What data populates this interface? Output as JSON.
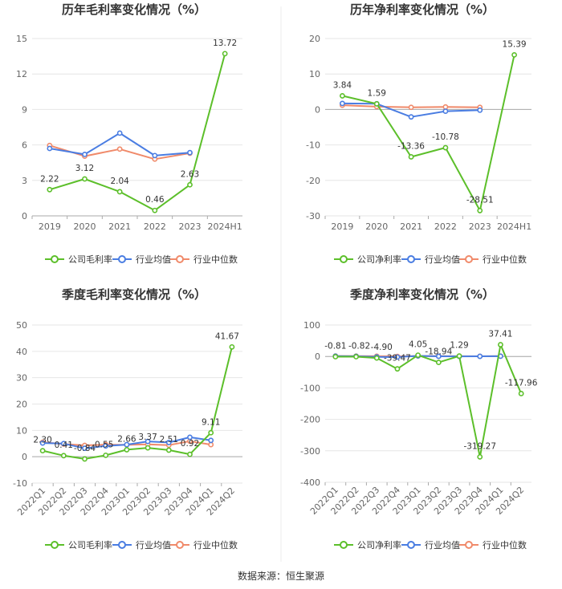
{
  "source_text": "数据来源：恒生聚源",
  "legend_labels": {
    "gross": [
      "公司毛利率",
      "行业均值",
      "行业中位数"
    ],
    "net": [
      "公司净利率",
      "行业均值",
      "行业中位数"
    ]
  },
  "colors": {
    "company": "#5cbf2a",
    "mean": "#4a7de2",
    "median": "#f08a6a",
    "grid": "#e6e6e6",
    "axis": "#aaaaaa"
  },
  "chart_data": [
    {
      "type": "line",
      "title": "历年毛利率变化情况（%）",
      "categories": [
        "2019",
        "2020",
        "2021",
        "2022",
        "2023",
        "2024H1"
      ],
      "ylim": [
        0,
        15
      ],
      "yticks": [
        0,
        3,
        6,
        9,
        12,
        15
      ],
      "series": [
        {
          "name": "公司毛利率",
          "values": [
            2.22,
            3.12,
            2.04,
            0.46,
            2.63,
            13.72
          ],
          "labels": [
            "2.22",
            "3.12",
            "2.04",
            "0.46",
            "2.63",
            "13.72"
          ]
        },
        {
          "name": "行业均值",
          "values": [
            5.7,
            5.2,
            7.0,
            5.1,
            5.35,
            null
          ]
        },
        {
          "name": "行业中位数",
          "values": [
            5.95,
            5.05,
            5.65,
            4.8,
            5.3,
            null
          ]
        }
      ]
    },
    {
      "type": "line",
      "title": "历年净利率变化情况（%）",
      "categories": [
        "2019",
        "2020",
        "2021",
        "2022",
        "2023",
        "2024H1"
      ],
      "ylim": [
        -30,
        20
      ],
      "yticks": [
        -30,
        -20,
        -10,
        0,
        10,
        20
      ],
      "series": [
        {
          "name": "公司净利率",
          "values": [
            3.84,
            1.59,
            -13.36,
            -10.78,
            -28.51,
            15.39
          ],
          "labels": [
            "3.84",
            "1.59",
            "-13.36",
            "-10.78",
            "-28.51",
            "15.39"
          ]
        },
        {
          "name": "行业均值",
          "values": [
            1.7,
            1.6,
            -2.1,
            -0.5,
            -0.2,
            null
          ]
        },
        {
          "name": "行业中位数",
          "values": [
            1.2,
            0.8,
            0.6,
            0.7,
            0.6,
            null
          ]
        }
      ]
    },
    {
      "type": "line",
      "title": "季度毛利率变化情况（%）",
      "categories": [
        "2022Q1",
        "2022Q2",
        "2022Q3",
        "2022Q4",
        "2023Q1",
        "2023Q2",
        "2023Q3",
        "2023Q4",
        "2024Q1",
        "2024Q2"
      ],
      "ylim": [
        -10,
        50
      ],
      "yticks": [
        -10,
        0,
        10,
        20,
        30,
        40,
        50
      ],
      "series": [
        {
          "name": "公司毛利率",
          "values": [
            2.3,
            0.41,
            -0.84,
            0.55,
            2.66,
            3.37,
            2.51,
            0.92,
            9.11,
            41.67
          ],
          "labels": [
            "2.30",
            "0.41",
            "-0.84",
            "0.55",
            "2.66",
            "3.37",
            "2.51",
            "0.92",
            "9.11",
            "41.67"
          ]
        },
        {
          "name": "行业均值",
          "values": [
            5.2,
            5.0,
            3.2,
            4.1,
            4.6,
            5.8,
            5.4,
            7.4,
            6.2,
            null
          ]
        },
        {
          "name": "行业中位数",
          "values": [
            5.5,
            4.8,
            4.3,
            4.6,
            4.5,
            4.7,
            4.4,
            5.9,
            4.6,
            null
          ]
        }
      ]
    },
    {
      "type": "line",
      "title": "季度净利率变化情况（%）",
      "categories": [
        "2022Q1",
        "2022Q2",
        "2022Q3",
        "2022Q4",
        "2023Q1",
        "2023Q2",
        "2023Q3",
        "2023Q4",
        "2024Q1",
        "2024Q2"
      ],
      "ylim": [
        -400,
        100
      ],
      "yticks": [
        -400,
        -300,
        -200,
        -100,
        0,
        100
      ],
      "series": [
        {
          "name": "公司净利率",
          "values": [
            -0.81,
            -0.82,
            -4.9,
            -39.47,
            4.05,
            -18.94,
            1.29,
            -319.27,
            37.41,
            -117.96
          ],
          "labels": [
            "-0.81",
            "-0.82",
            "-4.90",
            "-39.47",
            "4.05",
            "-18.94",
            "1.29",
            "-319.27",
            "37.41",
            "-117.96"
          ]
        },
        {
          "name": "行业均值",
          "values": [
            1.0,
            0.6,
            -1.5,
            -2.0,
            1.8,
            0.5,
            0.3,
            0.4,
            0.8,
            null
          ]
        },
        {
          "name": "行业中位数",
          "values": [
            1.5,
            1.2,
            0.8,
            0.2,
            1.6,
            0.9,
            0.7,
            0.5,
            1.0,
            null
          ]
        }
      ]
    }
  ]
}
